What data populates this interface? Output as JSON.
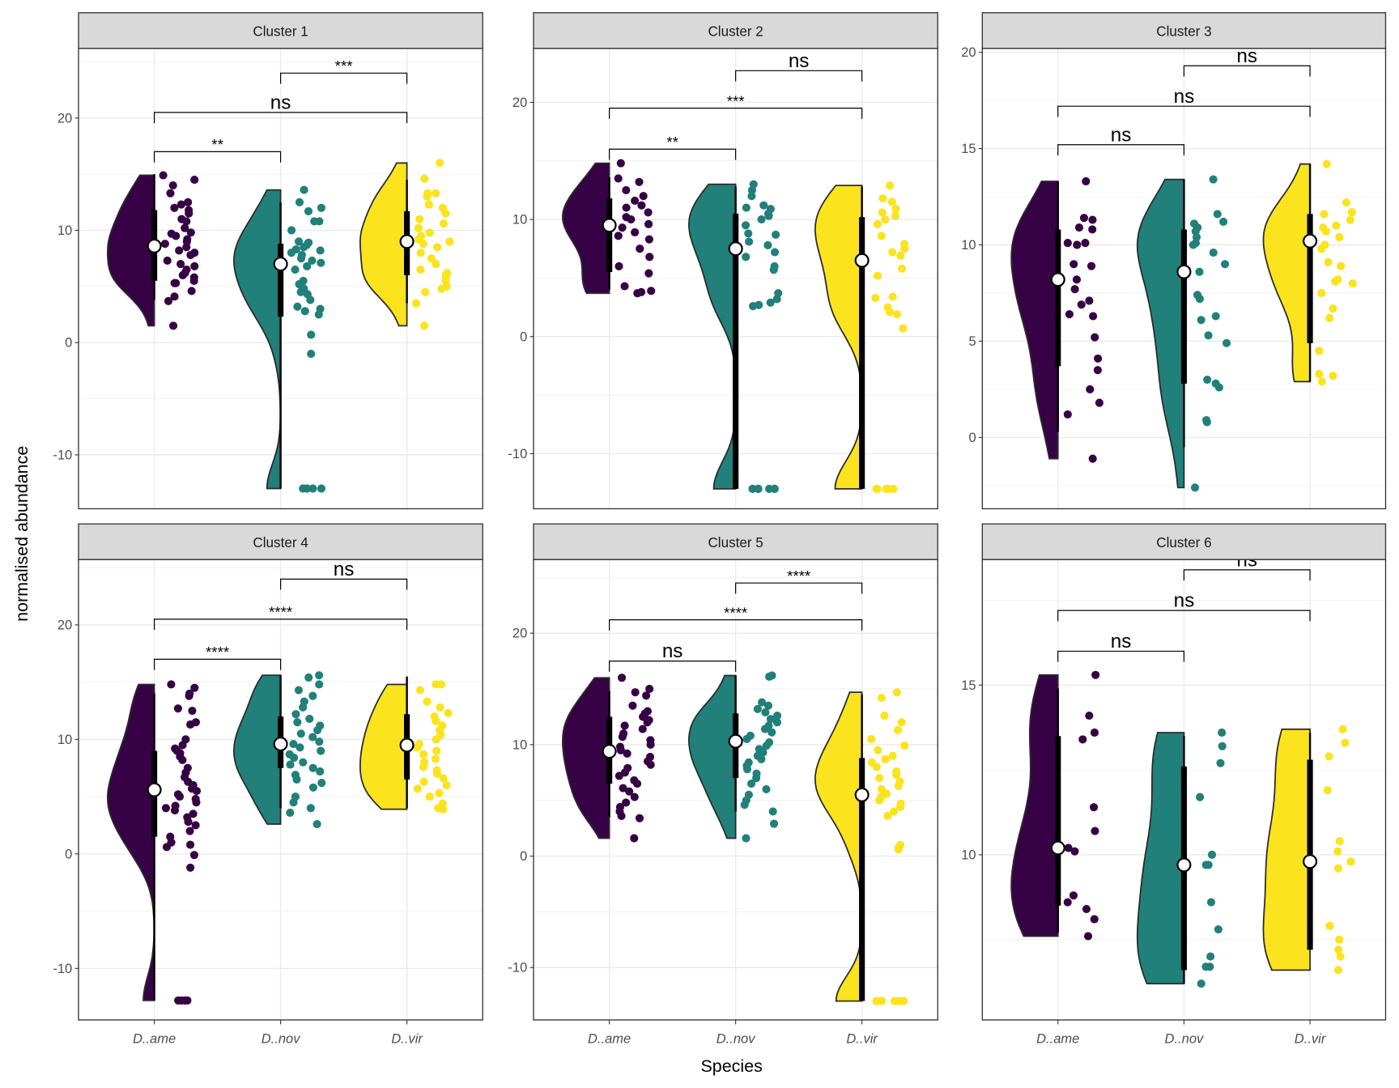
{
  "axes": {
    "xlabel": "Species",
    "ylabel": "normalised abundance"
  },
  "colors": {
    "D..ame": "#370245",
    "D..nov": "#21807a",
    "D..vir": "#fbe31e"
  },
  "chart_data": [
    {
      "type": "violin",
      "title": "Cluster 1",
      "ylim": [
        -14.8,
        26.2
      ],
      "yticks": [
        -10,
        0,
        10,
        20
      ],
      "grid": true,
      "categories": [
        "D..ame",
        "D..nov",
        "D..vir"
      ],
      "groups": [
        {
          "name": "D..ame",
          "whisker": [
            3.8,
            15
          ],
          "box": [
            5.5,
            11.8
          ],
          "mean": 8.6,
          "points": [
            14.9,
            14.5,
            14,
            13.3,
            12.5,
            12.3,
            12,
            11.8,
            11.5,
            11,
            10.8,
            10.2,
            9.8,
            9.7,
            9.5,
            9.2,
            9,
            8.8,
            8.5,
            8.2,
            8,
            7.8,
            7.3,
            7,
            6.8,
            6.5,
            6.2,
            6,
            5.8,
            5.5,
            5.3,
            5.3,
            4.6,
            4.1,
            3.7,
            1.5
          ]
        },
        {
          "name": "D..nov",
          "whisker": [
            -13,
            12.5
          ],
          "box": [
            2.3,
            8.8
          ],
          "mean": 7.0,
          "points": [
            13.6,
            12.5,
            12,
            11.7,
            10.8,
            10.8,
            10,
            9,
            8.9,
            8.7,
            8.5,
            8.3,
            8.2,
            8,
            7.8,
            7.5,
            7.3,
            7.1,
            6.8,
            6.5,
            5.5,
            5.2,
            5,
            4.8,
            4.5,
            4.3,
            3.8,
            3.2,
            3,
            2.8,
            2.5,
            0.7,
            -1,
            -13,
            -13,
            -13,
            -13,
            -13
          ]
        },
        {
          "name": "D..vir",
          "whisker": [
            3.5,
            14.5
          ],
          "box": [
            6,
            11.7
          ],
          "mean": 9.0,
          "points": [
            16,
            14.6,
            13.3,
            13.3,
            13,
            12.3,
            12,
            11.5,
            11,
            10.6,
            10.2,
            9.8,
            9.5,
            9.2,
            9,
            8.8,
            8.5,
            8,
            7.5,
            7,
            6.5,
            6.2,
            6,
            5.8,
            5.5,
            5,
            4.8,
            4.5,
            3.5,
            1.5
          ]
        }
      ],
      "comparisons": [
        {
          "from": "D..ame",
          "to": "D..nov",
          "y": 17,
          "label": "**"
        },
        {
          "from": "D..ame",
          "to": "D..vir",
          "y": 20.5,
          "label": "ns"
        },
        {
          "from": "D..nov",
          "to": "D..vir",
          "y": 24,
          "label": "***"
        }
      ]
    },
    {
      "type": "violin",
      "title": "Cluster 2",
      "ylim": [
        -14.7,
        24.6
      ],
      "yticks": [
        -10,
        0,
        10,
        20
      ],
      "grid": true,
      "categories": [
        "D..ame",
        "D..nov",
        "D..vir"
      ],
      "groups": [
        {
          "name": "D..ame",
          "whisker": [
            4,
            13.6
          ],
          "box": [
            5.5,
            11.8
          ],
          "mean": 9.5,
          "points": [
            14.8,
            13.5,
            13.2,
            12.5,
            12,
            11.6,
            11.2,
            11,
            10.6,
            10.2,
            10,
            9.6,
            9.3,
            8.9,
            8.6,
            8.3,
            7.5,
            6.8,
            6,
            5.4,
            4.3,
            3.9,
            3.7,
            3.8
          ]
        },
        {
          "name": "D..nov",
          "whisker": [
            -13,
            12.8
          ],
          "box": [
            -13,
            10.5
          ],
          "mean": 7.5,
          "points": [
            13,
            12.5,
            12,
            11.2,
            11,
            10.9,
            10.5,
            10.3,
            10,
            9.5,
            8.8,
            8.7,
            8.1,
            7.8,
            7.2,
            6.8,
            6,
            5.7,
            3.7,
            3.2,
            2.9,
            2.7,
            2.6,
            -13,
            -13,
            -13,
            -13,
            -13,
            -13
          ]
        },
        {
          "name": "D..vir",
          "whisker": [
            -13,
            12.8
          ],
          "box": [
            -13,
            10.2
          ],
          "mean": 6.5,
          "points": [
            12.9,
            11.8,
            11.5,
            10.9,
            10.6,
            10.3,
            10,
            9.6,
            8.6,
            7.9,
            7.5,
            7.2,
            6.9,
            5.8,
            5.2,
            3.4,
            3.3,
            2.5,
            2.1,
            1.9,
            0.7,
            -13,
            -13,
            -13,
            -13,
            -13,
            -13
          ]
        }
      ],
      "comparisons": [
        {
          "from": "D..ame",
          "to": "D..nov",
          "y": 16,
          "label": "**"
        },
        {
          "from": "D..ame",
          "to": "D..vir",
          "y": 19.5,
          "label": "***"
        },
        {
          "from": "D..nov",
          "to": "D..vir",
          "y": 22.7,
          "label": "ns"
        }
      ]
    },
    {
      "type": "violin",
      "title": "Cluster 3",
      "ylim": [
        -3.7,
        20.2
      ],
      "yticks": [
        0,
        5,
        10,
        15,
        20
      ],
      "grid": true,
      "categories": [
        "D..ame",
        "D..nov",
        "D..vir"
      ],
      "groups": [
        {
          "name": "D..ame",
          "whisker": [
            0.3,
            13.3
          ],
          "box": [
            3.7,
            10.8
          ],
          "mean": 8.2,
          "points": [
            13.3,
            11.4,
            11.3,
            10.9,
            10.8,
            10.1,
            10,
            10.1,
            9,
            8.9,
            8.2,
            7.7,
            7.1,
            6.9,
            6.4,
            6.3,
            5.2,
            4.1,
            3.5,
            2.5,
            1.8,
            1.2,
            -1.1
          ]
        },
        {
          "name": "D..nov",
          "whisker": [
            -0.5,
            13.4
          ],
          "box": [
            2.8,
            10.8
          ],
          "mean": 8.6,
          "points": [
            13.4,
            11.6,
            11.2,
            11.1,
            10.9,
            10.7,
            10.4,
            10.1,
            10,
            9.6,
            9,
            8.6,
            7.4,
            7.2,
            6.3,
            6.1,
            5.3,
            4.9,
            3,
            2.8,
            2.6,
            0.9,
            0.8,
            -2.6
          ]
        },
        {
          "name": "D..vir",
          "whisker": [
            2.9,
            14.2
          ],
          "box": [
            4.9,
            11.6
          ],
          "mean": 10.2,
          "points": [
            14.2,
            12.2,
            11.7,
            11.6,
            11.3,
            11,
            10.9,
            10.7,
            10.4,
            10,
            9.8,
            9.1,
            8.9,
            8.2,
            8.1,
            8,
            7.5,
            6.7,
            6.2,
            4.5,
            3.3,
            3.2,
            2.9
          ]
        }
      ],
      "comparisons": [
        {
          "from": "D..ame",
          "to": "D..nov",
          "y": 15.2,
          "label": "ns"
        },
        {
          "from": "D..ame",
          "to": "D..vir",
          "y": 17.2,
          "label": "ns"
        },
        {
          "from": "D..nov",
          "to": "D..vir",
          "y": 19.3,
          "label": "ns"
        }
      ]
    },
    {
      "type": "violin",
      "title": "Cluster 4",
      "ylim": [
        -14.5,
        25.7
      ],
      "yticks": [
        -10,
        0,
        10,
        20
      ],
      "grid": true,
      "categories": [
        "D..ame",
        "D..nov",
        "D..vir"
      ],
      "groups": [
        {
          "name": "D..ame",
          "whisker": [
            -12.8,
            14
          ],
          "box": [
            1.5,
            9
          ],
          "mean": 5.6,
          "points": [
            14.8,
            14.5,
            14,
            13.8,
            12.7,
            12.5,
            11.5,
            11.3,
            10,
            9.5,
            9.2,
            9,
            8.8,
            8.5,
            8.2,
            7.5,
            7.1,
            6.7,
            6.3,
            6,
            5.7,
            5.5,
            5.2,
            5,
            4.8,
            4.5,
            4.2,
            4,
            3.8,
            3.5,
            3.2,
            2.8,
            2.5,
            2,
            1.5,
            1,
            0.8,
            0.6,
            -0.1,
            -1.2,
            -12.8,
            -12.8,
            -12.8,
            -12.8
          ]
        },
        {
          "name": "D..nov",
          "whisker": [
            4,
            15.6
          ],
          "box": [
            7.5,
            12
          ],
          "mean": 9.6,
          "points": [
            15.6,
            15.4,
            14.8,
            14.3,
            13.8,
            13.3,
            12.8,
            12.2,
            11.8,
            11.5,
            11.2,
            10.8,
            10.5,
            10.2,
            9.8,
            9.6,
            9.3,
            9,
            8.7,
            8.4,
            8,
            7.8,
            7.5,
            7.2,
            6.9,
            6.5,
            6.2,
            5.8,
            5,
            4.5,
            4,
            3.6,
            2.6
          ]
        },
        {
          "name": "D..vir",
          "whisker": [
            4,
            15.5
          ],
          "box": [
            6.5,
            12.2
          ],
          "mean": 9.5,
          "points": [
            14.8,
            14.8,
            14.3,
            13.3,
            12.8,
            12.3,
            12,
            11.6,
            11.2,
            10.8,
            10.4,
            10,
            9.6,
            9.3,
            9,
            8.7,
            8.3,
            8,
            7.6,
            7.3,
            7,
            6.6,
            6.3,
            6,
            5.7,
            5.3,
            5,
            4.4,
            4,
            3.9
          ]
        }
      ],
      "comparisons": [
        {
          "from": "D..ame",
          "to": "D..nov",
          "y": 17,
          "label": "****"
        },
        {
          "from": "D..ame",
          "to": "D..vir",
          "y": 20.5,
          "label": "****"
        },
        {
          "from": "D..nov",
          "to": "D..vir",
          "y": 24,
          "label": "ns"
        }
      ]
    },
    {
      "type": "violin",
      "title": "Cluster 5",
      "ylim": [
        -14.7,
        26.6
      ],
      "yticks": [
        -10,
        0,
        10,
        20
      ],
      "grid": true,
      "categories": [
        "D..ame",
        "D..nov",
        "D..vir"
      ],
      "groups": [
        {
          "name": "D..ame",
          "whisker": [
            3.5,
            14.8
          ],
          "box": [
            6.5,
            12.5
          ],
          "mean": 9.4,
          "points": [
            16,
            15,
            14.7,
            14.4,
            13.5,
            13,
            12.8,
            12.5,
            12.2,
            12,
            11.7,
            11.4,
            11,
            10.7,
            10.4,
            10,
            9.8,
            9.5,
            9.2,
            8.9,
            8.5,
            8.2,
            7.9,
            7.5,
            7.2,
            6.8,
            6.5,
            6.1,
            5.8,
            5.3,
            4.8,
            4.4,
            4,
            3.6,
            3.4,
            1.6
          ]
        },
        {
          "name": "D..nov",
          "whisker": [
            4,
            16.2
          ],
          "box": [
            7,
            12.8
          ],
          "mean": 10.3,
          "points": [
            16.2,
            16.1,
            13.8,
            13.5,
            13.2,
            12.9,
            12.6,
            12.3,
            12,
            11.7,
            11.4,
            11.1,
            10.8,
            10.5,
            10.2,
            9.9,
            9.6,
            9.3,
            9,
            8.7,
            8.4,
            8.1,
            7.8,
            7.4,
            7,
            6.5,
            6,
            5.5,
            5,
            4.6,
            4,
            2.9,
            1.6
          ]
        },
        {
          "name": "D..vir",
          "whisker": [
            -13,
            14.5
          ],
          "box": [
            -13,
            8.8
          ],
          "mean": 5.5,
          "points": [
            14.7,
            14.2,
            12.6,
            12,
            11.3,
            10.5,
            9.9,
            9.5,
            9,
            8.7,
            8.4,
            8,
            7.6,
            7.3,
            7,
            6.7,
            6.3,
            6,
            5.6,
            5.3,
            5,
            4.7,
            4.4,
            4,
            3.6,
            1,
            0.8,
            0.6,
            -13,
            -13,
            -13,
            -13,
            -13,
            -13,
            -13,
            -13
          ]
        }
      ],
      "comparisons": [
        {
          "from": "D..ame",
          "to": "D..nov",
          "y": 17.5,
          "label": "ns"
        },
        {
          "from": "D..ame",
          "to": "D..vir",
          "y": 21.2,
          "label": "****"
        },
        {
          "from": "D..nov",
          "to": "D..vir",
          "y": 24.5,
          "label": "****"
        }
      ]
    },
    {
      "type": "violin",
      "title": "Cluster 6",
      "ylim": [
        5.13,
        18.7
      ],
      "yticks": [
        10,
        15
      ],
      "grid": true,
      "categories": [
        "D..ame",
        "D..nov",
        "D..vir"
      ],
      "groups": [
        {
          "name": "D..ame",
          "whisker": [
            7.7,
            14.9
          ],
          "box": [
            8.5,
            13.5
          ],
          "mean": 10.2,
          "points": [
            15.3,
            14.1,
            13.6,
            13.4,
            11.4,
            10.7,
            10.2,
            10.1,
            8.8,
            8.6,
            8.4,
            8.1,
            7.6
          ]
        },
        {
          "name": "D..nov",
          "whisker": [
            6.2,
            13.5
          ],
          "box": [
            6.6,
            12.6
          ],
          "mean": 9.7,
          "points": [
            13.6,
            13.2,
            12.7,
            11.7,
            10,
            9.7,
            9.7,
            8.6,
            7.8,
            7,
            6.7,
            6.7,
            6.2
          ]
        },
        {
          "name": "D..vir",
          "whisker": [
            7.2,
            13.6
          ],
          "box": [
            7.2,
            12.8
          ],
          "mean": 9.8,
          "points": [
            13.7,
            13.3,
            12.9,
            11.9,
            10.4,
            10.1,
            9.8,
            9.6,
            7.9,
            7.5,
            7.2,
            7,
            6.6
          ]
        }
      ],
      "comparisons": [
        {
          "from": "D..ame",
          "to": "D..nov",
          "y": 16,
          "label": "ns"
        },
        {
          "from": "D..ame",
          "to": "D..vir",
          "y": 17.2,
          "label": "ns"
        },
        {
          "from": "D..nov",
          "to": "D..vir",
          "y": 18.4,
          "label": "ns"
        }
      ]
    }
  ]
}
